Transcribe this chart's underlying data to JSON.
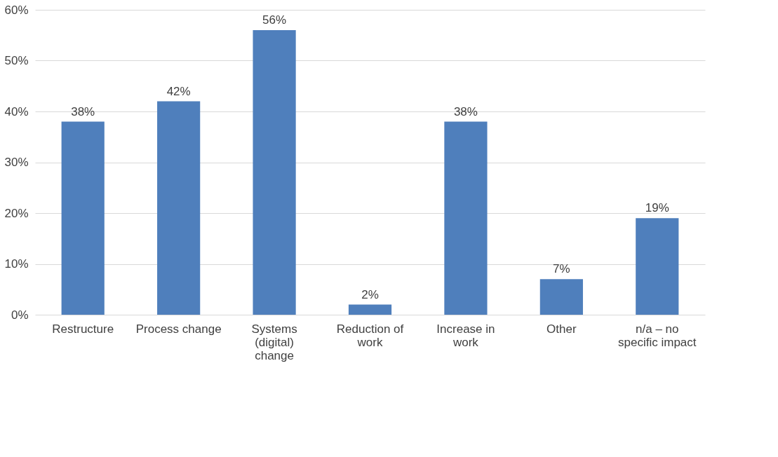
{
  "chart_data": {
    "type": "bar",
    "categories": [
      "Restructure",
      "Process change",
      "Systems (digital) change",
      "Reduction of work",
      "Increase in work",
      "Other",
      "n/a – no specific impact"
    ],
    "values": [
      38,
      42,
      56,
      2,
      38,
      7,
      19
    ],
    "value_labels": [
      "38%",
      "42%",
      "56%",
      "2%",
      "38%",
      "7%",
      "19%"
    ],
    "color": "#4f7fbc",
    "ylim": [
      0,
      60
    ],
    "yticks": [
      {
        "value": 0,
        "label": "0%"
      },
      {
        "value": 10,
        "label": "10%"
      },
      {
        "value": 20,
        "label": "20%"
      },
      {
        "value": 30,
        "label": "30%"
      },
      {
        "value": 40,
        "label": "40%"
      },
      {
        "value": 50,
        "label": "50%"
      },
      {
        "value": 60,
        "label": "60%"
      }
    ],
    "grid": "y"
  }
}
